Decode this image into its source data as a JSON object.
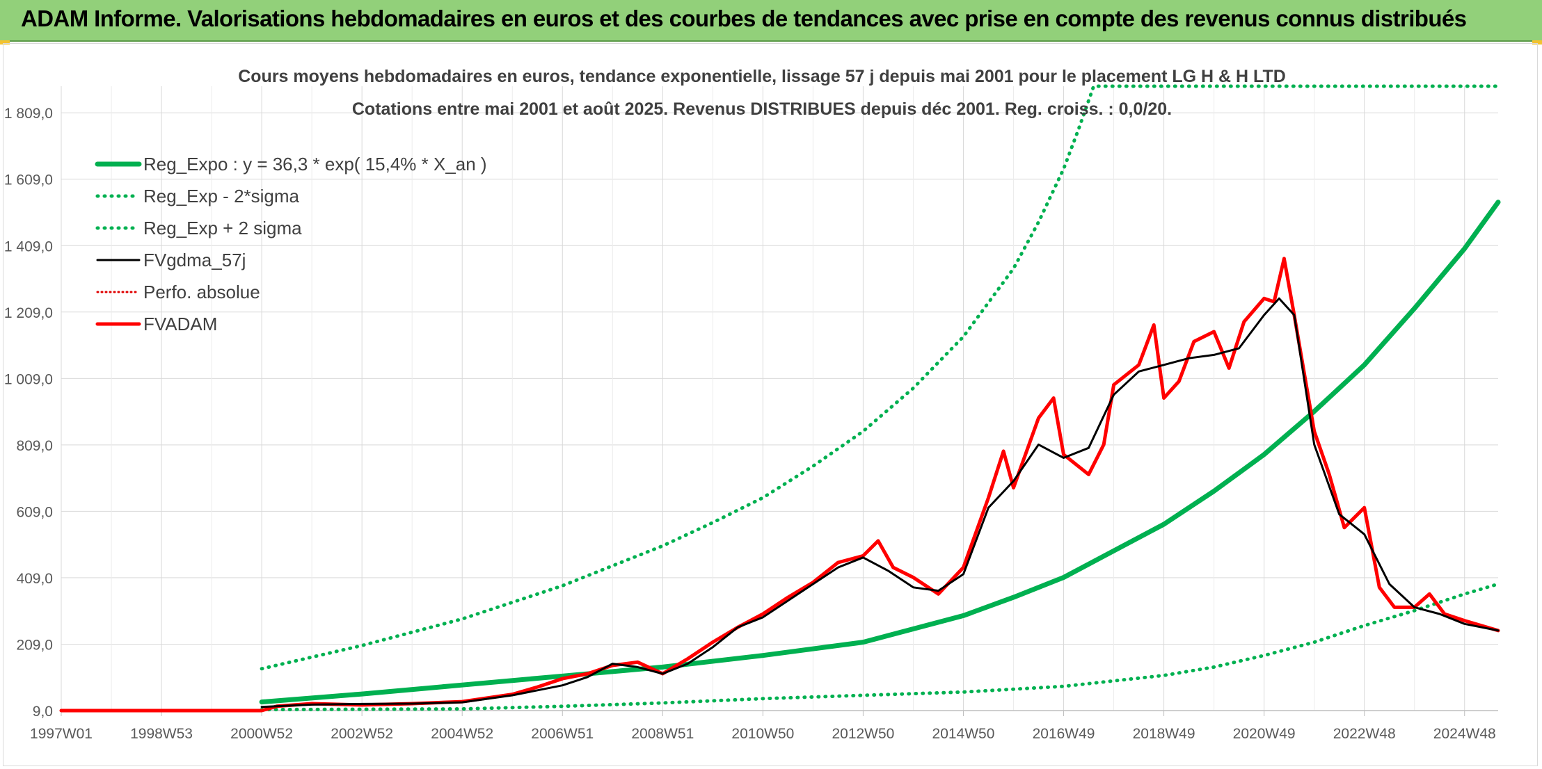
{
  "header": {
    "title": "ADAM Informe. Valorisations hebdomadaires en euros et des courbes de tendances avec prise en compte des revenus connus distribués"
  },
  "chart_data": {
    "type": "line",
    "title": "Cours moyens hebdomadaires en euros, tendance exponentielle, lissage 57 j depuis mai 2001 pour le placement LG H & H LTD",
    "subtitle": "Cotations entre mai 2001 et août 2025. Revenus DISTRIBUES depuis déc 2001. Reg. croiss. : 0,0/20.",
    "xlabel": "",
    "ylabel": "",
    "ylim": [
      9.0,
      1889.0
    ],
    "xlim": [
      1997.0,
      2025.67
    ],
    "yticks": [
      "9,0",
      "209,0",
      "409,0",
      "609,0",
      "809,0",
      "1 009,0",
      "1 209,0",
      "1 409,0",
      "1 609,0",
      "1 809,0"
    ],
    "ytick_values": [
      9,
      209,
      409,
      609,
      809,
      1009,
      1209,
      1409,
      1609,
      1809
    ],
    "xticks": [
      "1997W01",
      "1998W53",
      "2000W52",
      "2002W52",
      "2004W52",
      "2006W51",
      "2008W51",
      "2010W50",
      "2012W50",
      "2014W50",
      "2016W49",
      "2018W49",
      "2020W49",
      "2022W48",
      "2024W48"
    ],
    "xtick_values": [
      1997.0,
      1999.0,
      2001.0,
      2003.0,
      2005.0,
      2007.0,
      2009.0,
      2011.0,
      2013.0,
      2015.0,
      2017.0,
      2019.0,
      2021.0,
      2023.0,
      2025.0
    ],
    "grid": true,
    "legend_position": "top-left",
    "legend": [
      {
        "label": "Reg_Expo : y = 36,3 * exp( 15,4% *  X_an )",
        "color": "#00b050",
        "style": "solid-thick"
      },
      {
        "label": "Reg_Exp - 2*sigma",
        "color": "#00b050",
        "style": "dotted"
      },
      {
        "label": "Reg_Exp + 2 sigma",
        "color": "#00b050",
        "style": "dotted"
      },
      {
        "label": "FVgdma_57j",
        "color": "#000000",
        "style": "solid"
      },
      {
        "label": "Perfo. absolue",
        "color": "#e00000",
        "style": "dotted"
      },
      {
        "label": "FVADAM",
        "color": "#ff0000",
        "style": "solid-thick"
      }
    ],
    "series": [
      {
        "name": "Reg_Expo : y = 36,3 * exp( 15,4% *  X_an )",
        "color": "#00b050",
        "x": [
          2001.0,
          2003.0,
          2005.0,
          2007.0,
          2009.0,
          2011.0,
          2013.0,
          2015.0,
          2016.0,
          2017.0,
          2018.0,
          2019.0,
          2020.0,
          2021.0,
          2022.0,
          2023.0,
          2024.0,
          2025.0,
          2025.67
        ],
        "values": [
          35,
          59,
          86,
          113,
          140,
          175,
          215,
          295,
          350,
          410,
          490,
          570,
          670,
          780,
          910,
          1050,
          1220,
          1400,
          1540
        ]
      },
      {
        "name": "Reg_Exp - 2*sigma",
        "color": "#00b050",
        "x": [
          2001.0,
          2003.0,
          2005.0,
          2007.0,
          2009.0,
          2011.0,
          2013.0,
          2015.0,
          2017.0,
          2019.0,
          2020.0,
          2021.0,
          2022.0,
          2023.0,
          2024.0,
          2025.0,
          2025.67
        ],
        "values": [
          12,
          13,
          14,
          22,
          32,
          45,
          55,
          65,
          82,
          115,
          140,
          175,
          215,
          265,
          310,
          360,
          390
        ]
      },
      {
        "name": "Reg_Exp + 2 sigma",
        "color": "#00b050",
        "x": [
          2001.0,
          2003.0,
          2005.0,
          2007.0,
          2008.0,
          2009.0,
          2010.0,
          2011.0,
          2012.0,
          2013.0,
          2014.0,
          2015.0,
          2016.0,
          2016.5,
          2017.0,
          2017.3,
          2017.6,
          2020.0,
          2025.67
        ],
        "values": [
          135,
          205,
          285,
          385,
          445,
          505,
          575,
          650,
          745,
          850,
          980,
          1135,
          1340,
          1480,
          1640,
          1760,
          1889,
          1889,
          1889
        ]
      },
      {
        "name": "FVgdma_57j",
        "color": "#000000",
        "x": [
          2001.0,
          2002.0,
          2003.0,
          2004.0,
          2005.0,
          2006.0,
          2007.0,
          2007.5,
          2008.0,
          2008.5,
          2009.0,
          2009.5,
          2010.0,
          2010.5,
          2011.0,
          2011.5,
          2012.0,
          2012.5,
          2013.0,
          2013.5,
          2014.0,
          2014.5,
          2015.0,
          2015.5,
          2016.0,
          2016.5,
          2017.0,
          2017.5,
          2018.0,
          2018.5,
          2019.0,
          2019.5,
          2020.0,
          2020.5,
          2021.0,
          2021.3,
          2021.6,
          2022.0,
          2022.5,
          2023.0,
          2023.5,
          2024.0,
          2024.5,
          2025.0,
          2025.67
        ],
        "values": [
          20,
          27,
          29,
          30,
          34,
          55,
          85,
          110,
          150,
          140,
          120,
          150,
          200,
          260,
          290,
          340,
          390,
          440,
          470,
          430,
          380,
          370,
          420,
          620,
          700,
          810,
          770,
          800,
          960,
          1030,
          1050,
          1070,
          1080,
          1100,
          1200,
          1250,
          1200,
          810,
          600,
          540,
          390,
          320,
          300,
          270,
          250
        ]
      },
      {
        "name": "FVADAM",
        "color": "#ff0000",
        "x": [
          1997.0,
          2001.0,
          2001.3,
          2002.0,
          2003.0,
          2004.0,
          2005.0,
          2006.0,
          2006.5,
          2007.0,
          2007.5,
          2008.0,
          2008.5,
          2009.0,
          2009.5,
          2010.0,
          2010.5,
          2011.0,
          2011.5,
          2012.0,
          2012.5,
          2013.0,
          2013.3,
          2013.6,
          2014.0,
          2014.5,
          2015.0,
          2015.5,
          2015.8,
          2016.0,
          2016.5,
          2016.8,
          2017.0,
          2017.5,
          2017.8,
          2018.0,
          2018.5,
          2018.8,
          2019.0,
          2019.3,
          2019.6,
          2020.0,
          2020.3,
          2020.6,
          2021.0,
          2021.2,
          2021.4,
          2021.6,
          2022.0,
          2022.3,
          2022.6,
          2023.0,
          2023.3,
          2023.6,
          2024.0,
          2024.3,
          2024.6,
          2025.0,
          2025.67
        ],
        "values": [
          9,
          9,
          22,
          30,
          26,
          30,
          36,
          58,
          80,
          105,
          120,
          145,
          155,
          120,
          165,
          215,
          260,
          300,
          350,
          395,
          455,
          475,
          520,
          440,
          410,
          360,
          440,
          650,
          790,
          680,
          890,
          950,
          780,
          720,
          810,
          990,
          1050,
          1170,
          950,
          1000,
          1120,
          1150,
          1040,
          1180,
          1250,
          1240,
          1370,
          1200,
          850,
          720,
          560,
          620,
          380,
          320,
          320,
          360,
          300,
          280,
          250
        ]
      }
    ]
  }
}
